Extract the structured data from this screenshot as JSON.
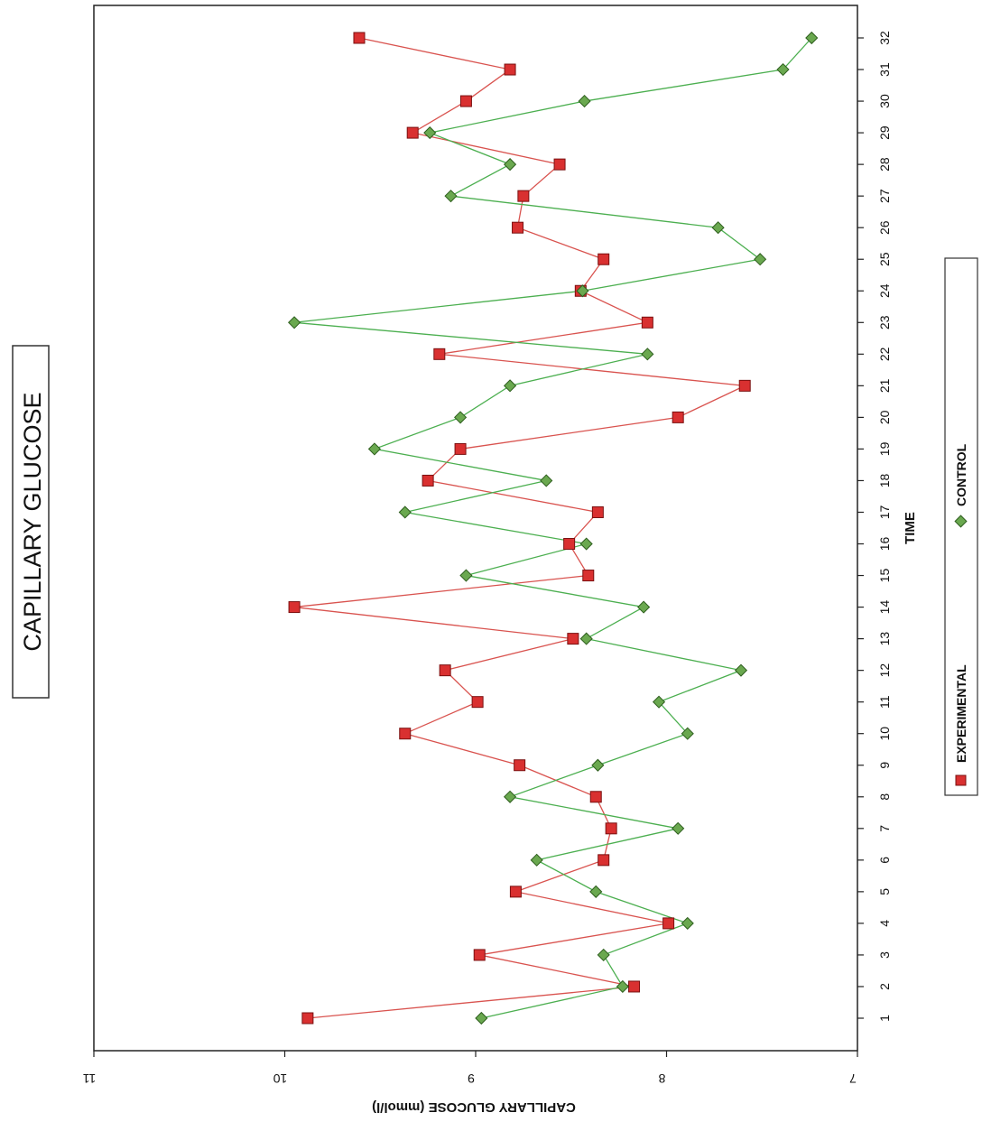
{
  "chart_data": {
    "type": "line",
    "orientation": "rotated-90",
    "title": "CAPILLARY GLUCOSE",
    "xlabel": "TIME",
    "ylabel": "CAPILLARY GLUCOSE (mmol/l)",
    "ylim": [
      7,
      11
    ],
    "yticks": [
      7,
      8,
      9,
      10,
      11
    ],
    "x": [
      1,
      2,
      3,
      4,
      5,
      6,
      7,
      8,
      9,
      10,
      11,
      12,
      13,
      14,
      15,
      16,
      17,
      18,
      19,
      20,
      21,
      22,
      23,
      24,
      25,
      26,
      27,
      28,
      29,
      30,
      31,
      32
    ],
    "grid": false,
    "legend_position": "bottom",
    "series": [
      {
        "name": "EXPERIMENTAL",
        "marker": "square",
        "color": "#d93030",
        "line_color": "#d9534f",
        "values": [
          9.88,
          8.17,
          8.98,
          7.99,
          8.79,
          8.33,
          8.29,
          8.37,
          8.77,
          9.37,
          8.99,
          9.16,
          8.49,
          9.95,
          8.41,
          8.51,
          8.36,
          9.25,
          9.08,
          7.94,
          7.59,
          9.19,
          8.1,
          8.45,
          8.33,
          8.78,
          8.75,
          8.56,
          9.33,
          9.05,
          8.82,
          9.61
        ]
      },
      {
        "name": "CONTROL",
        "marker": "diamond",
        "color": "#6aa84f",
        "line_color": "#4caf50",
        "values": [
          8.97,
          8.23,
          8.33,
          7.89,
          8.37,
          8.68,
          7.94,
          8.82,
          8.36,
          7.89,
          8.04,
          7.61,
          8.42,
          8.12,
          9.05,
          8.42,
          9.37,
          8.63,
          9.53,
          9.08,
          8.82,
          8.1,
          9.95,
          8.44,
          7.51,
          7.73,
          9.13,
          8.82,
          9.24,
          8.43,
          7.39,
          7.24
        ]
      }
    ]
  }
}
